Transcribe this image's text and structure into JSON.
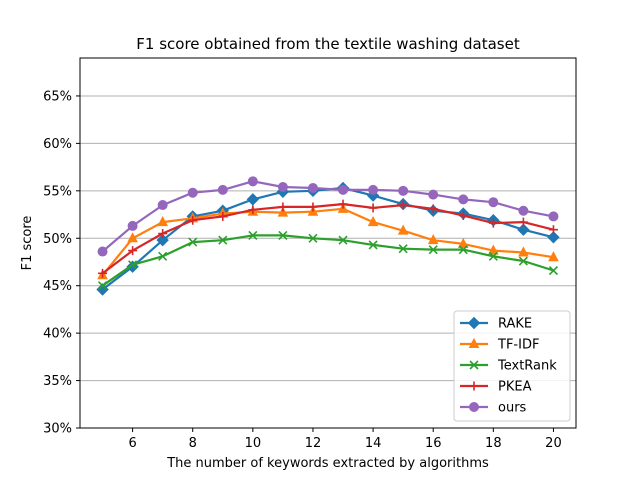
{
  "chart_data": {
    "type": "line",
    "title": "F1 score obtained from the textile washing dataset",
    "xlabel": "The number of keywords extracted by algorithms",
    "ylabel": "F1 score",
    "x": [
      5,
      6,
      7,
      8,
      9,
      10,
      11,
      12,
      13,
      14,
      15,
      16,
      17,
      18,
      19,
      20
    ],
    "xlim": [
      4.25,
      20.75
    ],
    "ylim": [
      30,
      69
    ],
    "xticks": [
      6,
      8,
      10,
      12,
      14,
      16,
      18,
      20
    ],
    "xtick_labels": [
      "6",
      "8",
      "10",
      "12",
      "14",
      "16",
      "18",
      "20"
    ],
    "yticks": [
      30,
      35,
      40,
      45,
      50,
      55,
      60,
      65
    ],
    "ytick_labels": [
      "30%",
      "35%",
      "40%",
      "45%",
      "50%",
      "55%",
      "60%",
      "65%"
    ],
    "grid": "horizontal",
    "legend_position": "lower-right",
    "series": [
      {
        "name": "RAKE",
        "color": "#1f77b4",
        "marker": "diamond",
        "values": [
          44.6,
          47.0,
          49.8,
          52.3,
          52.9,
          54.1,
          54.9,
          55.0,
          55.3,
          54.5,
          53.6,
          52.9,
          52.6,
          51.9,
          50.9,
          50.1
        ]
      },
      {
        "name": "TF-IDF",
        "color": "#ff7f0e",
        "marker": "triangle",
        "values": [
          46.1,
          50.0,
          51.7,
          52.1,
          52.6,
          52.8,
          52.7,
          52.8,
          53.1,
          51.7,
          50.8,
          49.8,
          49.4,
          48.7,
          48.5,
          48.0
        ]
      },
      {
        "name": "TextRank",
        "color": "#2ca02c",
        "marker": "x",
        "values": [
          45.0,
          47.2,
          48.1,
          49.6,
          49.8,
          50.3,
          50.3,
          50.0,
          49.8,
          49.3,
          48.9,
          48.8,
          48.8,
          48.1,
          47.6,
          46.6
        ]
      },
      {
        "name": "PKEA",
        "color": "#d62728",
        "marker": "plus",
        "values": [
          46.3,
          48.7,
          50.5,
          51.9,
          52.3,
          53.0,
          53.3,
          53.3,
          53.6,
          53.2,
          53.5,
          53.1,
          52.4,
          51.6,
          51.7,
          50.9
        ]
      },
      {
        "name": "ours",
        "color": "#9467bd",
        "marker": "circle",
        "values": [
          48.6,
          51.3,
          53.5,
          54.8,
          55.1,
          56.0,
          55.4,
          55.3,
          55.1,
          55.1,
          55.0,
          54.6,
          54.1,
          53.8,
          52.9,
          52.3
        ]
      }
    ]
  }
}
